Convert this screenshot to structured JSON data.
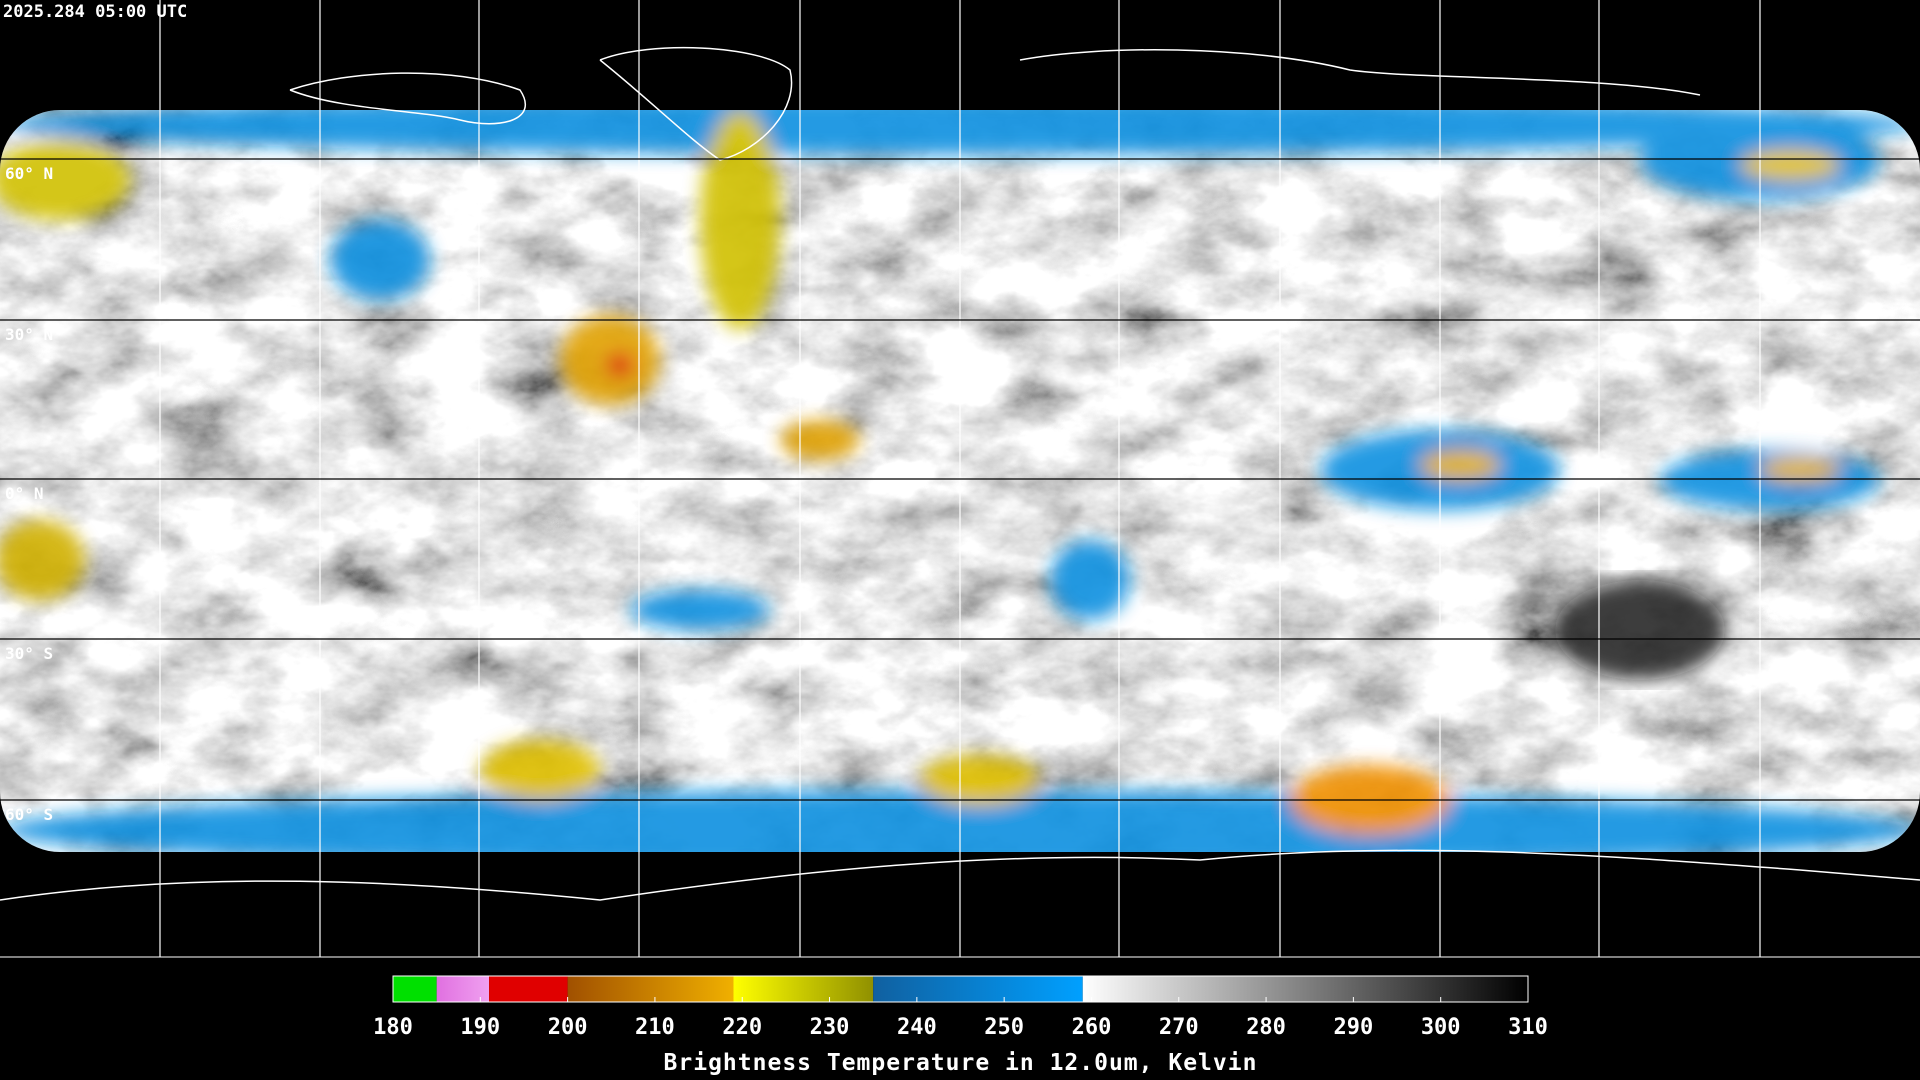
{
  "map": {
    "timestamp": "2025.284 05:00 UTC",
    "lat_labels": [
      "60° N",
      "30° N",
      "0° N",
      "30° S",
      "60° S"
    ],
    "colorbar": {
      "title": "Brightness Temperature in 12.0um, Kelvin",
      "range": [
        180,
        310
      ],
      "ticks": [
        180,
        190,
        200,
        210,
        220,
        230,
        240,
        250,
        260,
        270,
        280,
        290,
        300,
        310
      ],
      "segments": [
        {
          "from": 180,
          "to": 185,
          "colors": [
            "#00e000",
            "#00e000"
          ]
        },
        {
          "from": 185,
          "to": 191,
          "colors": [
            "#e070e0",
            "#f0a0f0"
          ]
        },
        {
          "from": 191,
          "to": 200,
          "colors": [
            "#e00000",
            "#e00000"
          ]
        },
        {
          "from": 200,
          "to": 219,
          "colors": [
            "#a05000",
            "#f0b000"
          ]
        },
        {
          "from": 219,
          "to": 235,
          "colors": [
            "#ffff00",
            "#909000"
          ]
        },
        {
          "from": 235,
          "to": 259,
          "colors": [
            "#1060a0",
            "#00a0ff"
          ]
        },
        {
          "from": 259,
          "to": 310,
          "colors": [
            "#ffffff",
            "#000000"
          ]
        }
      ]
    }
  }
}
